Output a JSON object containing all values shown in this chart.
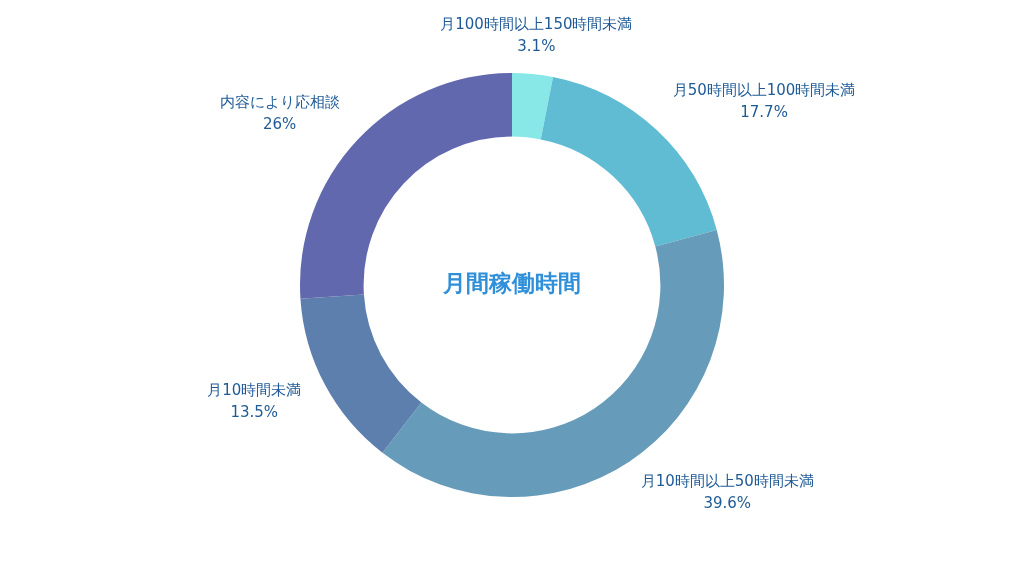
{
  "chart_data": {
    "type": "donut",
    "title": "月間稼働時間",
    "categories": [
      "月100時間以上150時間未満",
      "月50時間以上100時間未満",
      "月10時間以上50時間未満",
      "月10時間未満",
      "内容により応相談"
    ],
    "values": [
      3.1,
      17.7,
      39.6,
      13.5,
      26
    ],
    "value_labels": [
      "3.1%",
      "17.7%",
      "39.6%",
      "13.5%",
      "26%"
    ],
    "colors": [
      "#88e8e8",
      "#5fbcd3",
      "#669bb9",
      "#5d7fad",
      "#6268ae"
    ],
    "legend": false
  }
}
